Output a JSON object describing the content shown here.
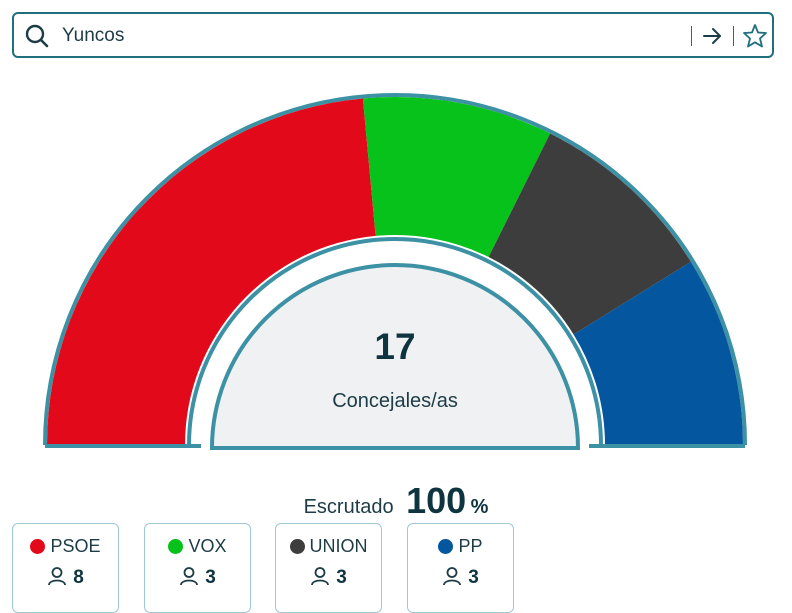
{
  "search": {
    "value": "Yuncos"
  },
  "summary": {
    "total_seats": "17",
    "total_label": "Concejales/as",
    "scrutiny_label": "Escrutado",
    "scrutiny_value": "100",
    "scrutiny_unit": "%"
  },
  "colors": {
    "accent": "#1f6f7e",
    "ring": "#3c91a5",
    "inner_fill": "#eff1f3"
  },
  "chart_data": {
    "type": "pie",
    "subtype": "hemicycle",
    "categories": [
      "PSOE",
      "VOX",
      "UNION",
      "PP"
    ],
    "values": [
      8,
      3,
      3,
      3
    ],
    "colors": [
      "#e20a1a",
      "#06c21b",
      "#3d3d3d",
      "#04569f"
    ],
    "total": 17,
    "total_label": "Concejales/as"
  },
  "parties": [
    {
      "name": "PSOE",
      "seats": "8",
      "color": "#e20a1a"
    },
    {
      "name": "VOX",
      "seats": "3",
      "color": "#06c21b"
    },
    {
      "name": "UNION",
      "seats": "3",
      "color": "#3d3d3d"
    },
    {
      "name": "PP",
      "seats": "3",
      "color": "#04569f"
    }
  ]
}
